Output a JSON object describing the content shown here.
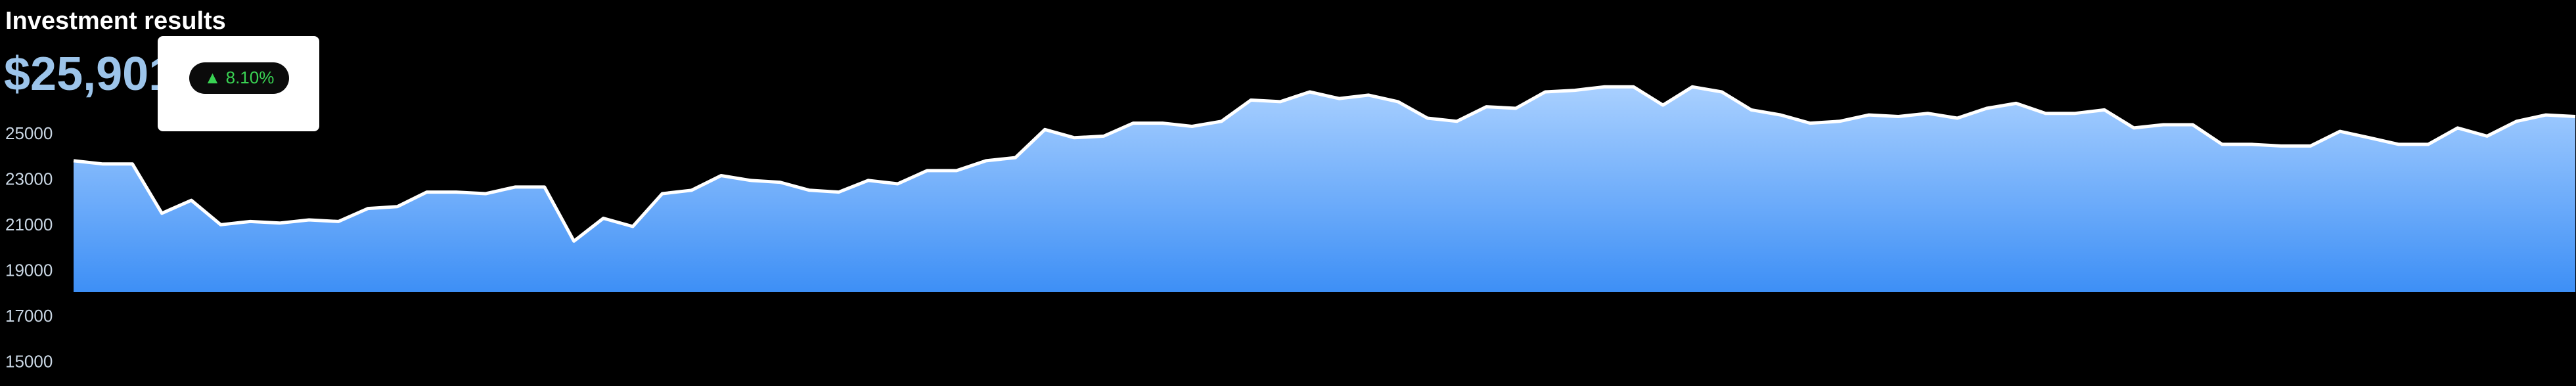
{
  "chart_data": {
    "type": "area",
    "title": "Investment results",
    "value": "$25,901",
    "change": "▲ 8.10%",
    "color": "#8fc2ff",
    "line_color": "#ffffff",
    "categories": [
      null,
      null,
      null,
      null,
      null,
      null,
      null,
      null,
      null,
      null,
      null,
      null,
      null,
      null,
      null,
      null,
      null,
      null,
      null,
      null,
      null,
      null,
      null,
      null,
      null,
      null,
      null,
      null,
      null,
      null,
      null,
      null,
      null,
      null,
      null,
      null,
      null,
      null,
      null,
      null,
      null,
      null,
      null,
      null,
      null,
      null,
      null,
      null,
      null,
      null,
      null,
      null,
      null,
      null,
      null,
      null,
      null,
      null,
      null,
      null,
      null,
      null,
      null,
      null,
      null,
      null,
      null,
      null,
      null,
      null,
      null,
      null,
      null,
      null,
      null,
      null,
      null,
      null,
      null,
      null,
      null,
      null,
      null,
      null,
      null,
      null
    ],
    "values": [
      23850,
      23710,
      23710,
      21550,
      22120,
      21050,
      21190,
      21120,
      21260,
      21190,
      21760,
      21840,
      22480,
      22480,
      22410,
      22700,
      22700,
      20330,
      21330,
      20970,
      22410,
      22560,
      23200,
      22990,
      22910,
      22560,
      22480,
      22990,
      22840,
      23420,
      23420,
      23850,
      23990,
      25220,
      24860,
      24930,
      25500,
      25500,
      25360,
      25580,
      26510,
      26440,
      26870,
      26580,
      26730,
      26440,
      25720,
      25580,
      26220,
      26150,
      26870,
      26940,
      27090,
      27090,
      26290,
      27090,
      26870,
      26080,
      25860,
      25500,
      25580,
      25860,
      25790,
      25930,
      25720,
      26150,
      26370,
      25930,
      25930,
      26080,
      25290,
      25430,
      25430,
      24570,
      24570,
      24500,
      24500,
      25140,
      24860,
      24570,
      24570,
      25290,
      24930,
      25580,
      25860,
      25790
    ],
    "ylim": [
      15000,
      27500
    ],
    "yticks": [
      25000,
      23000,
      21000,
      19000,
      17000,
      15000
    ]
  }
}
